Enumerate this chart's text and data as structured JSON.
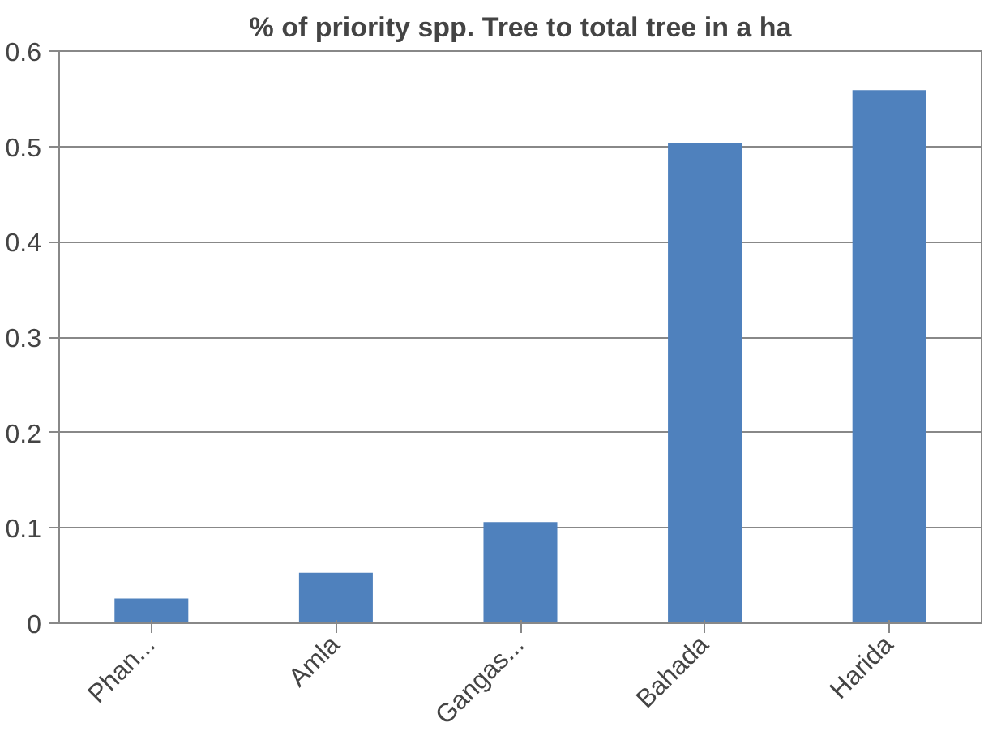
{
  "chart_data": {
    "type": "bar",
    "title": "% of priority spp. Tree to total tree in a ha",
    "categories": [
      "Phan...",
      "Amla",
      "Gangas...",
      "Bahada",
      "Harida"
    ],
    "values": [
      0.026,
      0.053,
      0.106,
      0.504,
      0.559
    ],
    "color": "#4f81bd",
    "ylim": [
      0,
      0.6
    ],
    "yticks": [
      0,
      0.1,
      0.2,
      0.3,
      0.4,
      0.5,
      0.6
    ],
    "grid": "y"
  }
}
